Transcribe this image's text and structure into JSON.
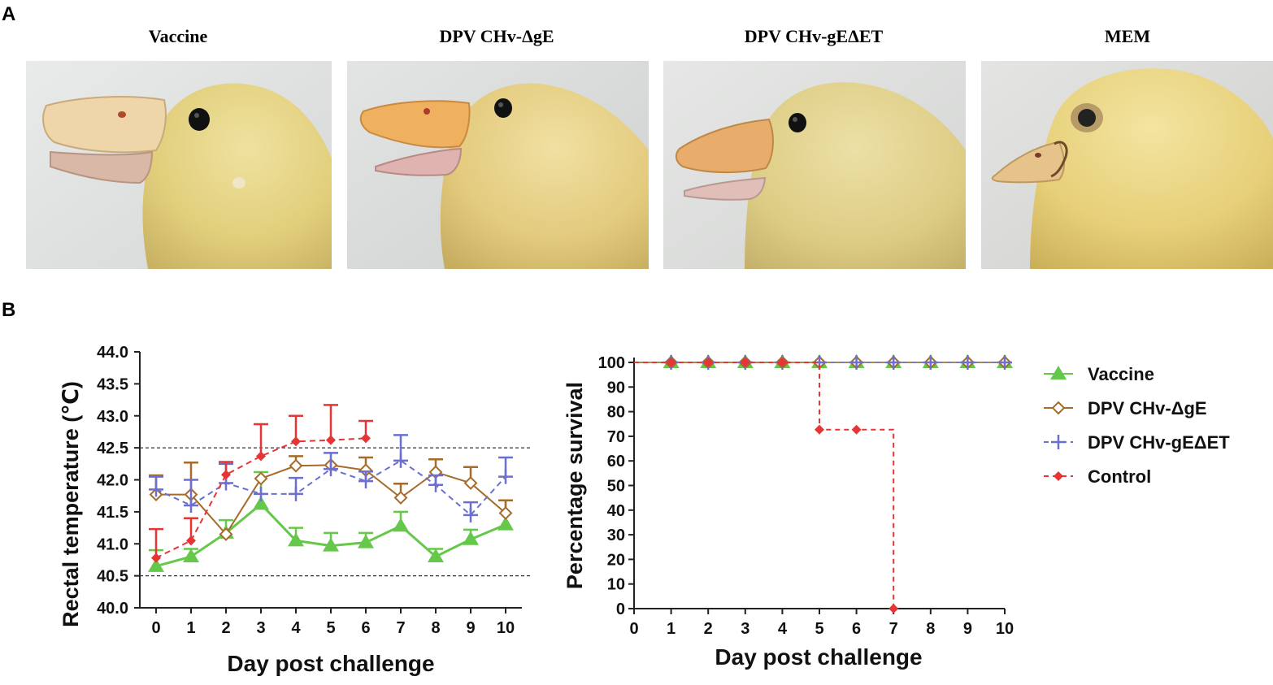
{
  "panel_labels": {
    "a": "A",
    "b": "B"
  },
  "photos": [
    {
      "label": "Vaccine",
      "condition": "healthy"
    },
    {
      "label": "DPV CHv-ΔgE",
      "condition": "healthy"
    },
    {
      "label": "DPV CHv-gEΔET",
      "condition": "healthy"
    },
    {
      "label": "MEM",
      "condition": "sick"
    }
  ],
  "colors": {
    "vaccine": "#66c84a",
    "dge": "#a66b2a",
    "geet": "#6a6fd0",
    "control": "#e53535",
    "control_marker": "#e53535"
  },
  "chart_data": [
    {
      "type": "line",
      "xlabel": "Day post challenge",
      "ylabel": "Rectal temperature (℃)",
      "xlim": [
        0,
        10
      ],
      "ylim": [
        40.0,
        44.0
      ],
      "x_ticks": [
        0,
        1,
        2,
        3,
        4,
        5,
        6,
        7,
        8,
        9,
        10
      ],
      "y_ticks": [
        "40.0",
        "40.5",
        "41.0",
        "41.5",
        "42.0",
        "42.5",
        "43.0",
        "43.5",
        "44.0"
      ],
      "reference_lines": [
        40.5,
        42.5
      ],
      "series": [
        {
          "name": "Vaccine",
          "x": [
            0,
            1,
            2,
            3,
            4,
            5,
            6,
            7,
            8,
            9,
            10
          ],
          "values": [
            40.65,
            40.8,
            41.17,
            41.62,
            41.05,
            40.97,
            41.02,
            41.28,
            40.8,
            41.07,
            41.3
          ],
          "error": [
            0.25,
            0.12,
            0.2,
            0.5,
            0.2,
            0.2,
            0.15,
            0.22,
            0.12,
            0.15,
            0.38
          ]
        },
        {
          "name": "DPV CHv-ΔgE",
          "x": [
            0,
            1,
            2,
            3,
            4,
            5,
            6,
            7,
            8,
            9,
            10
          ],
          "values": [
            41.77,
            41.77,
            41.15,
            42.02,
            42.22,
            42.23,
            42.15,
            41.72,
            42.12,
            41.95,
            41.48
          ],
          "error": [
            0.3,
            0.5,
            0.0,
            0.0,
            0.15,
            0.0,
            0.2,
            0.22,
            0.2,
            0.25,
            0.2
          ]
        },
        {
          "name": "DPV CHv-gEΔET",
          "x": [
            0,
            1,
            2,
            3,
            4,
            5,
            6,
            7,
            8,
            9,
            10
          ],
          "values": [
            41.85,
            41.6,
            41.95,
            41.78,
            41.78,
            42.17,
            41.98,
            42.3,
            41.92,
            41.45,
            42.05
          ],
          "error": [
            0.2,
            0.4,
            0.3,
            0.0,
            0.25,
            0.25,
            0.15,
            0.4,
            0.15,
            0.2,
            0.3
          ]
        },
        {
          "name": "Control",
          "x": [
            0,
            1,
            2,
            3,
            4,
            5,
            6
          ],
          "values": [
            40.78,
            41.05,
            42.08,
            42.37,
            42.6,
            42.62,
            42.65
          ],
          "error": [
            0.45,
            0.35,
            0.2,
            0.5,
            0.4,
            0.55,
            0.27
          ]
        }
      ]
    },
    {
      "type": "line",
      "step": true,
      "xlabel": "Day post challenge",
      "ylabel": "Percentage survival",
      "xlim": [
        0,
        10
      ],
      "ylim": [
        0,
        100
      ],
      "x_ticks": [
        0,
        1,
        2,
        3,
        4,
        5,
        6,
        7,
        8,
        9,
        10
      ],
      "y_ticks": [
        0,
        10,
        20,
        30,
        40,
        50,
        60,
        70,
        80,
        90,
        100
      ],
      "series": [
        {
          "name": "Vaccine",
          "x": [
            1,
            2,
            3,
            4,
            5,
            6,
            7,
            8,
            9,
            10
          ],
          "values": [
            100,
            100,
            100,
            100,
            100,
            100,
            100,
            100,
            100,
            100
          ]
        },
        {
          "name": "DPV CHv-ΔgE",
          "x": [
            1,
            2,
            3,
            4,
            5,
            6,
            7,
            8,
            9,
            10
          ],
          "values": [
            100,
            100,
            100,
            100,
            100,
            100,
            100,
            100,
            100,
            100
          ]
        },
        {
          "name": "DPV CHv-gEΔET",
          "x": [
            1,
            2,
            3,
            4,
            5,
            6,
            7,
            8,
            9,
            10
          ],
          "values": [
            100,
            100,
            100,
            100,
            100,
            100,
            100,
            100,
            100,
            100
          ]
        },
        {
          "name": "Control",
          "x": [
            1,
            2,
            3,
            4,
            5,
            6,
            7
          ],
          "values": [
            100,
            100,
            100,
            100,
            72.7,
            72.7,
            0
          ]
        }
      ],
      "legend": {
        "position": "right",
        "entries": [
          "Vaccine",
          "DPV CHv-ΔgE",
          "DPV CHv-gEΔET",
          "Control"
        ]
      }
    }
  ]
}
